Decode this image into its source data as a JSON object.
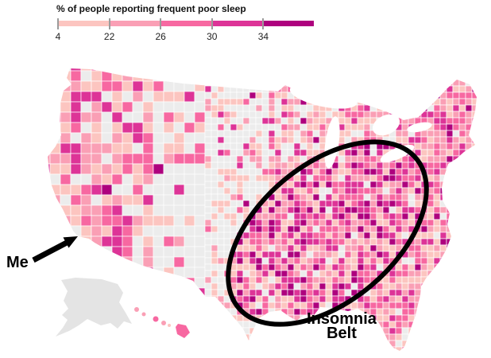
{
  "legend": {
    "title": "% of people reporting frequent poor sleep",
    "ticks": [
      "4",
      "22",
      "26",
      "30",
      "34"
    ],
    "colors": [
      "#fcc5c0",
      "#fa9fb5",
      "#f768a1",
      "#dd3497",
      "#ae017e"
    ],
    "no_data_color": "#ececec"
  },
  "annotations": {
    "me_label": "Me",
    "belt_line1": "Insomnia",
    "belt_line2": "Belt"
  },
  "map_data": {
    "type": "choropleth",
    "geography": "United States counties (incl. Alaska and Hawaii insets)",
    "metric": "% of people reporting frequent poor sleep",
    "scale_breaks": [
      4,
      22,
      26,
      30,
      34
    ],
    "scale_colors": [
      "#fcc5c0",
      "#fa9fb5",
      "#f768a1",
      "#dd3497",
      "#ae017e"
    ],
    "no_data_color": "#ececec",
    "alaska_color": "#e4e4e4",
    "annotation_color": "#000000",
    "regions_weights": {
      "core": [
        0.07,
        0.1,
        0.17,
        0.28,
        0.34,
        0.04
      ],
      "belt": [
        0.2,
        0.16,
        0.2,
        0.21,
        0.17,
        0.06
      ],
      "west": [
        0.25,
        0.22,
        0.17,
        0.1,
        0.03,
        0.23
      ],
      "plains": [
        0.21,
        0.08,
        0.05,
        0.03,
        0.01,
        0.62
      ],
      "tx_south": [
        0.25,
        0.12,
        0.08,
        0.04,
        0.01,
        0.5
      ],
      "midwest": [
        0.33,
        0.22,
        0.12,
        0.07,
        0.03,
        0.23
      ],
      "northeast": [
        0.2,
        0.28,
        0.26,
        0.14,
        0.06,
        0.06
      ],
      "south_other": [
        0.28,
        0.26,
        0.24,
        0.12,
        0.05,
        0.05
      ]
    },
    "cell_seed": 42
  }
}
